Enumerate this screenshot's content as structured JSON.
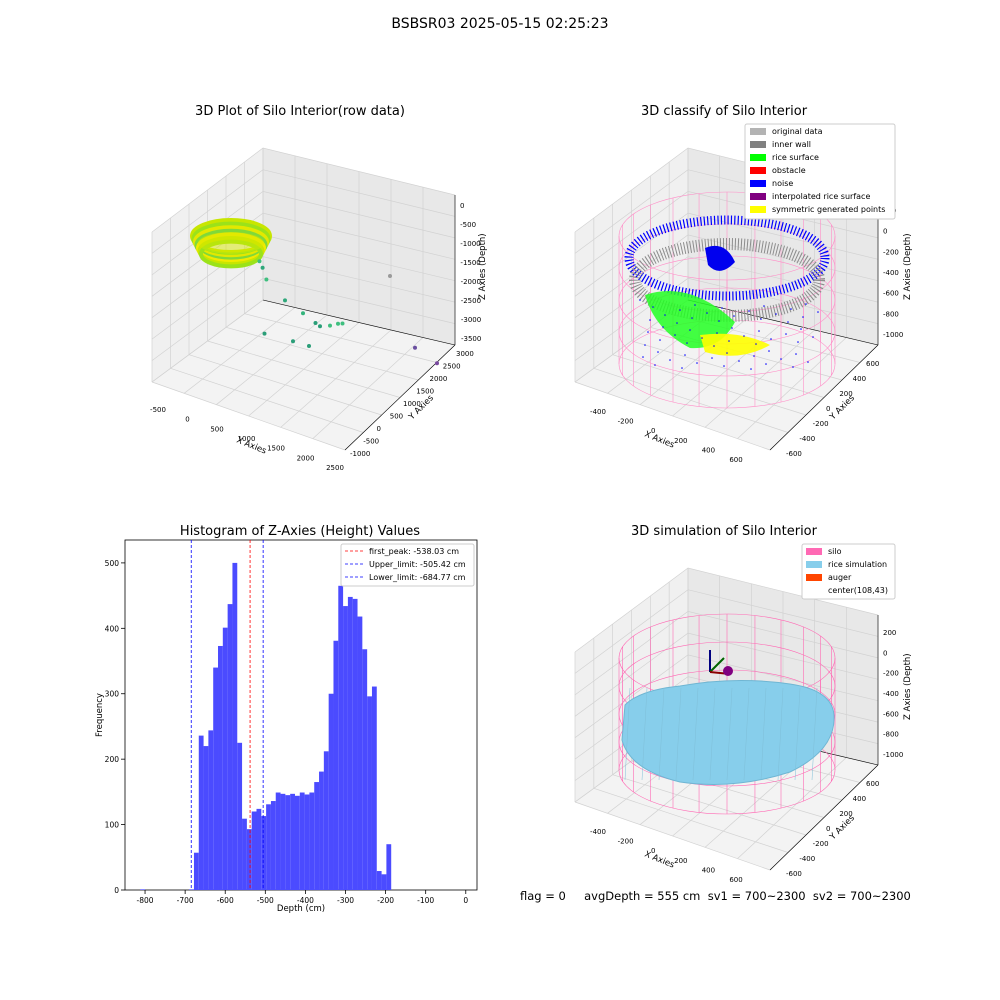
{
  "figure": {
    "suptitle": "BSBSR03 2025-05-15 02:25:23",
    "status_line": "flag = 0     avgDepth = 555 cm  sv1 = 700~2300  sv2 = 700~2300"
  },
  "chart_data": [
    {
      "type": "scatter",
      "title": "3D Plot of Silo Interior(row data)",
      "xlabel": "X Axies",
      "ylabel": "Y Axies",
      "zlabel": "Z Axies (Depth)",
      "x_ticks": [
        "-500",
        "0",
        "500",
        "1000",
        "1500",
        "2000",
        "2500"
      ],
      "y_ticks": [
        "-1000",
        "-500",
        "0",
        "500",
        "1000",
        "1500",
        "2000",
        "2500",
        "3000"
      ],
      "z_ticks": [
        "0",
        "-500",
        "-1000",
        "-1500",
        "-2000",
        "-2500",
        "-3000",
        "-3500"
      ],
      "outlier_points": [
        {
          "x": 450,
          "y": 2600,
          "z": -1300
        },
        {
          "x": 480,
          "y": 2550,
          "z": -1450
        },
        {
          "x": 520,
          "y": 2500,
          "z": -1750
        },
        {
          "x": 700,
          "y": 2200,
          "z": -2100
        },
        {
          "x": 900,
          "y": 2000,
          "z": -2300
        },
        {
          "x": 1050,
          "y": 1900,
          "z": -2500
        },
        {
          "x": 1100,
          "y": 1850,
          "z": -2550
        },
        {
          "x": 1200,
          "y": 1700,
          "z": -2400
        },
        {
          "x": 1300,
          "y": 1650,
          "z": -2300
        },
        {
          "x": 1350,
          "y": 1600,
          "z": -2250
        },
        {
          "x": 350,
          "y": 2000,
          "z": -2900
        },
        {
          "x": 700,
          "y": 1800,
          "z": -2950
        },
        {
          "x": 900,
          "y": 1700,
          "z": -3000
        },
        {
          "x": 2300,
          "y": 1300,
          "z": -2700
        },
        {
          "x": 2500,
          "y": 900,
          "z": -2800
        },
        {
          "x": 2400,
          "y": 2900,
          "z": -2000
        }
      ],
      "grid": true
    },
    {
      "type": "scatter",
      "title": "3D classify of Silo Interior",
      "xlabel": "X Axies",
      "ylabel": "Y Axies",
      "zlabel": "Z Axies (Depth)",
      "x_ticks": [
        "-400",
        "-200",
        "0",
        "200",
        "400",
        "600"
      ],
      "y_ticks": [
        "-600",
        "-400",
        "-200",
        "0",
        "200",
        "400",
        "600"
      ],
      "z_ticks": [
        "200",
        "0",
        "-200",
        "-400",
        "-600",
        "-800",
        "-1000"
      ],
      "legend": [
        {
          "label": "original data",
          "color": "#b3b3b3"
        },
        {
          "label": "inner wall",
          "color": "#808080"
        },
        {
          "label": "rice surface",
          "color": "#00ff00"
        },
        {
          "label": "obstacle",
          "color": "#ff0000"
        },
        {
          "label": "noise",
          "color": "#0000ff"
        },
        {
          "label": "interpolated rice surface",
          "color": "#800080"
        },
        {
          "label": "symmetric generated points",
          "color": "#ffff00"
        }
      ],
      "legend_position": "top-right",
      "grid": true
    },
    {
      "type": "bar",
      "title": "Histogram of Z-Axies (Height) Values",
      "xlabel": "Depth (cm)",
      "ylabel": "Frequency",
      "xlim": [
        -850,
        28
      ],
      "ylim": [
        0,
        535
      ],
      "x_ticks": [
        "-800",
        "-700",
        "-600",
        "-500",
        "-400",
        "-300",
        "-200",
        "-100",
        "0"
      ],
      "y_ticks": [
        "0",
        "100",
        "200",
        "300",
        "400",
        "500"
      ],
      "bar_color": "#4b4bff",
      "bins": [
        {
          "x0": -812,
          "x1": -800,
          "value": 1
        },
        {
          "x0": -690,
          "x1": -678,
          "value": 1
        },
        {
          "x0": -678,
          "x1": -666,
          "value": 57
        },
        {
          "x0": -666,
          "x1": -654,
          "value": 236
        },
        {
          "x0": -654,
          "x1": -642,
          "value": 220
        },
        {
          "x0": -642,
          "x1": -630,
          "value": 244
        },
        {
          "x0": -630,
          "x1": -618,
          "value": 340
        },
        {
          "x0": -618,
          "x1": -606,
          "value": 373
        },
        {
          "x0": -606,
          "x1": -594,
          "value": 401
        },
        {
          "x0": -594,
          "x1": -582,
          "value": 437
        },
        {
          "x0": -582,
          "x1": -570,
          "value": 500
        },
        {
          "x0": -570,
          "x1": -558,
          "value": 225
        },
        {
          "x0": -558,
          "x1": -546,
          "value": 109
        },
        {
          "x0": -546,
          "x1": -534,
          "value": 93
        },
        {
          "x0": -534,
          "x1": -522,
          "value": 120
        },
        {
          "x0": -522,
          "x1": -510,
          "value": 124
        },
        {
          "x0": -510,
          "x1": -498,
          "value": 113
        },
        {
          "x0": -498,
          "x1": -486,
          "value": 131
        },
        {
          "x0": -486,
          "x1": -474,
          "value": 136
        },
        {
          "x0": -474,
          "x1": -462,
          "value": 149
        },
        {
          "x0": -462,
          "x1": -450,
          "value": 147
        },
        {
          "x0": -450,
          "x1": -438,
          "value": 145
        },
        {
          "x0": -438,
          "x1": -426,
          "value": 147
        },
        {
          "x0": -426,
          "x1": -414,
          "value": 144
        },
        {
          "x0": -414,
          "x1": -402,
          "value": 149
        },
        {
          "x0": -402,
          "x1": -390,
          "value": 146
        },
        {
          "x0": -390,
          "x1": -378,
          "value": 149
        },
        {
          "x0": -378,
          "x1": -366,
          "value": 165
        },
        {
          "x0": -366,
          "x1": -354,
          "value": 181
        },
        {
          "x0": -354,
          "x1": -342,
          "value": 212
        },
        {
          "x0": -342,
          "x1": -330,
          "value": 300
        },
        {
          "x0": -330,
          "x1": -318,
          "value": 381
        },
        {
          "x0": -318,
          "x1": -306,
          "value": 465
        },
        {
          "x0": -306,
          "x1": -294,
          "value": 434
        },
        {
          "x0": -294,
          "x1": -282,
          "value": 448
        },
        {
          "x0": -282,
          "x1": -270,
          "value": 445
        },
        {
          "x0": -270,
          "x1": -258,
          "value": 418
        },
        {
          "x0": -258,
          "x1": -246,
          "value": 368
        },
        {
          "x0": -246,
          "x1": -234,
          "value": 296
        },
        {
          "x0": -234,
          "x1": -222,
          "value": 311
        },
        {
          "x0": -222,
          "x1": -210,
          "value": 29
        },
        {
          "x0": -210,
          "x1": -198,
          "value": 24
        },
        {
          "x0": -198,
          "x1": -186,
          "value": 70
        }
      ],
      "vlines": [
        {
          "label": "first_peak: -538.03 cm",
          "value": -538.03,
          "color": "#ff0000"
        },
        {
          "label": "Upper_limit: -505.42 cm",
          "value": -505.42,
          "color": "#0000ff"
        },
        {
          "label": "Lower_limit: -684.77 cm",
          "value": -684.77,
          "color": "#0000ff"
        }
      ],
      "legend_position": "top-right",
      "grid": false
    },
    {
      "type": "surface",
      "title": "3D simulation of Silo Interior",
      "xlabel": "X Axies",
      "ylabel": "Y Axies",
      "zlabel": "Z Axies (Depth)",
      "x_ticks": [
        "-400",
        "-200",
        "0",
        "200",
        "400",
        "600"
      ],
      "y_ticks": [
        "-600",
        "-400",
        "-200",
        "0",
        "200",
        "400",
        "600"
      ],
      "z_ticks": [
        "200",
        "0",
        "-200",
        "-400",
        "-600",
        "-800",
        "-1000"
      ],
      "legend": [
        {
          "label": "silo",
          "color": "#ff69b4"
        },
        {
          "label": "rice simulation",
          "color": "#87ceeb"
        },
        {
          "label": "auger",
          "color": "#ff4500"
        },
        {
          "label": "center(108,43)",
          "color": ""
        }
      ],
      "legend_position": "top-right",
      "grid": true
    }
  ]
}
